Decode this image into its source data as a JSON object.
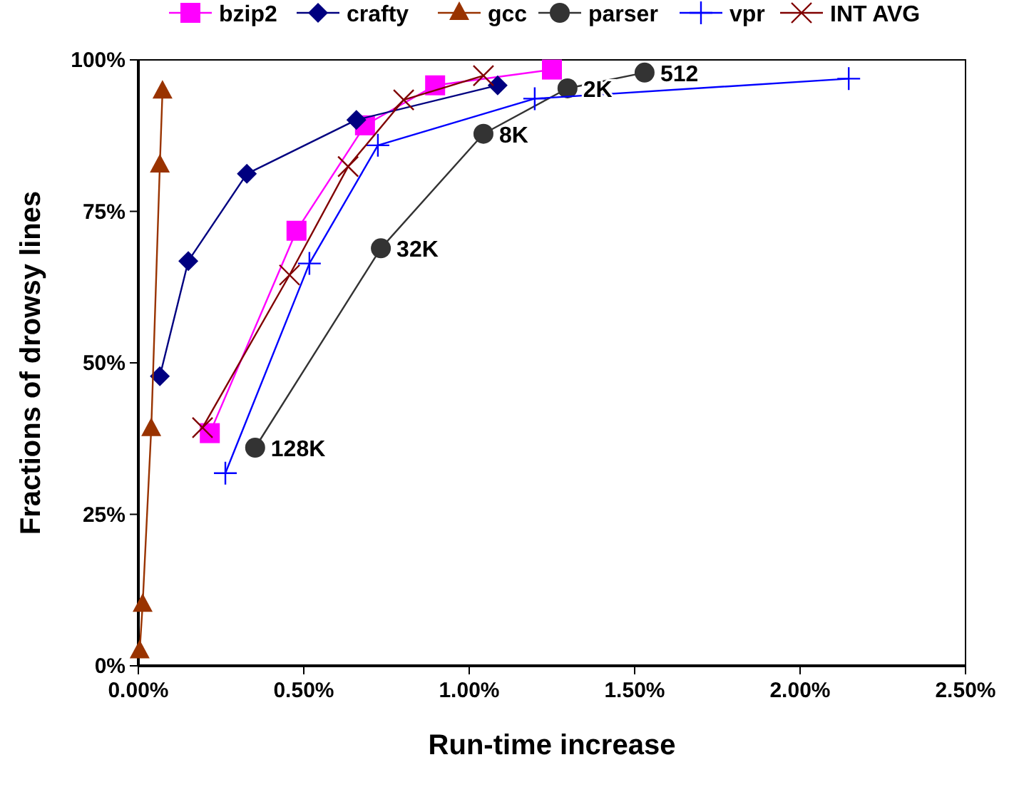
{
  "chart_data": {
    "type": "line",
    "xlabel": "Run-time increase",
    "ylabel": "Fractions of drowsy lines",
    "xlim": [
      0,
      2.5
    ],
    "ylim": [
      0,
      100
    ],
    "xticks": [
      {
        "value": 0,
        "label": "0.00%"
      },
      {
        "value": 0.5,
        "label": "0.50%"
      },
      {
        "value": 1,
        "label": "1.00%"
      },
      {
        "value": 1.5,
        "label": "1.50%"
      },
      {
        "value": 2,
        "label": "2.00%"
      },
      {
        "value": 2.5,
        "label": "2.50%"
      }
    ],
    "yticks": [
      {
        "value": 0,
        "label": "0%"
      },
      {
        "value": 25,
        "label": "25%"
      },
      {
        "value": 50,
        "label": "50%"
      },
      {
        "value": 75,
        "label": "75%"
      },
      {
        "value": 100,
        "label": "100%"
      }
    ],
    "grid": false,
    "legend": "top",
    "line_style": "solid",
    "series": [
      {
        "name": "bzip2",
        "color": "#ff00ff",
        "marker": "square",
        "x": [
          0.216,
          0.478,
          0.685,
          0.897,
          1.25
        ],
        "values": [
          38.4,
          71.8,
          89.2,
          95.8,
          98.4
        ]
      },
      {
        "name": "crafty",
        "color": "#000080",
        "marker": "diamond",
        "x": [
          0.065,
          0.151,
          0.328,
          0.659,
          1.086
        ],
        "values": [
          47.8,
          66.8,
          81.2,
          90.1,
          95.8
        ]
      },
      {
        "name": "gcc",
        "color": "#993300",
        "marker": "triangle",
        "x": [
          0.004,
          0.013,
          0.039,
          0.065,
          0.073
        ],
        "values": [
          2.4,
          10.1,
          39.1,
          82.6,
          94.8
        ]
      },
      {
        "name": "parser",
        "color": "#333333",
        "marker": "circle",
        "x": [
          0.353,
          0.733,
          1.043,
          1.297,
          1.53
        ],
        "values": [
          36,
          68.9,
          87.8,
          95.3,
          97.9
        ]
      },
      {
        "name": "vpr",
        "color": "#0000ff",
        "marker": "cross",
        "x": [
          0.263,
          0.517,
          0.724,
          1.198,
          2.147
        ],
        "values": [
          31.8,
          66.4,
          85.9,
          93.6,
          96.9
        ]
      },
      {
        "name": "INT AVG",
        "color": "#800000",
        "marker": "x",
        "x": [
          0.194,
          0.457,
          0.634,
          0.802,
          1.043
        ],
        "values": [
          39.3,
          64.5,
          82.4,
          93.4,
          97.4
        ]
      }
    ],
    "annotations": [
      {
        "text": "128K",
        "x": 0.353,
        "y": 36
      },
      {
        "text": "32K",
        "x": 0.733,
        "y": 68.9
      },
      {
        "text": "8K",
        "x": 1.043,
        "y": 87.8
      },
      {
        "text": "2K",
        "x": 1.297,
        "y": 95.3
      },
      {
        "text": "512",
        "x": 1.53,
        "y": 97.9
      }
    ]
  }
}
